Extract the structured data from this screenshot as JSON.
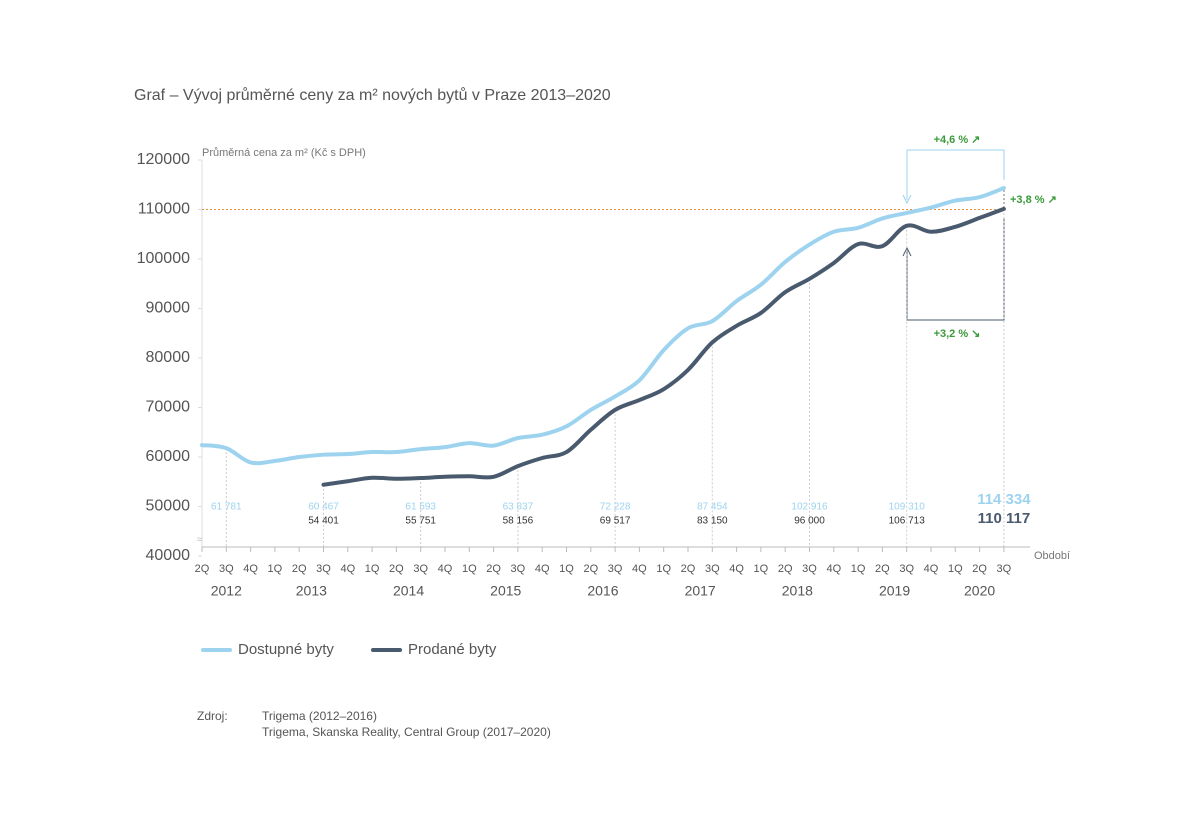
{
  "chart_data": {
    "type": "line",
    "title": "Graf – Vývoj průměrné ceny za m² nových bytů v Praze  2013–2020",
    "y_axis_label": "Průměrná cena za m² (Kč s DPH)",
    "x_axis_label": "Období",
    "category_groups": [
      {
        "label": "2012",
        "categories": [
          "2Q",
          "3Q",
          "4Q"
        ]
      },
      {
        "label": "2013",
        "categories": [
          "1Q",
          "2Q",
          "3Q",
          "4Q"
        ]
      },
      {
        "label": "2014",
        "categories": [
          "1Q",
          "2Q",
          "3Q",
          "4Q"
        ]
      },
      {
        "label": "2015",
        "categories": [
          "1Q",
          "2Q",
          "3Q",
          "4Q"
        ]
      },
      {
        "label": "2016",
        "categories": [
          "1Q",
          "2Q",
          "3Q",
          "4Q"
        ]
      },
      {
        "label": "2017",
        "categories": [
          "1Q",
          "2Q",
          "3Q",
          "4Q"
        ]
      },
      {
        "label": "2018",
        "categories": [
          "1Q",
          "2Q",
          "3Q",
          "4Q"
        ]
      },
      {
        "label": "2019",
        "categories": [
          "1Q",
          "2Q",
          "3Q",
          "4Q"
        ]
      },
      {
        "label": "2020",
        "categories": [
          "1Q",
          "2Q",
          "3Q"
        ]
      }
    ],
    "series": [
      {
        "name": "Dostupné byty",
        "color": "#9dd3ef",
        "values": [
          62400,
          61781,
          58900,
          59200,
          60000,
          60467,
          60600,
          61000,
          61000,
          61593,
          62000,
          62800,
          62300,
          63837,
          64500,
          66200,
          69500,
          72228,
          75500,
          81600,
          86000,
          87454,
          91500,
          94800,
          99400,
          102916,
          105500,
          106300,
          108200,
          109310,
          110400,
          111800,
          112500,
          114334
        ],
        "value_labels": [
          null,
          "61 781",
          null,
          null,
          null,
          "60 467",
          null,
          null,
          null,
          "61 593",
          null,
          null,
          null,
          "63 837",
          null,
          null,
          null,
          "72 228",
          null,
          null,
          null,
          "87 454",
          null,
          null,
          null,
          "102 916",
          null,
          null,
          null,
          "109 310",
          null,
          null,
          null,
          "114 334"
        ]
      },
      {
        "name": "Prodané byty",
        "color": "#4a5a6e",
        "values": [
          null,
          null,
          null,
          null,
          null,
          54401,
          55100,
          55800,
          55600,
          55751,
          56000,
          56100,
          56000,
          58156,
          59800,
          61000,
          65500,
          69517,
          71500,
          73700,
          77600,
          83150,
          86500,
          89100,
          93300,
          96000,
          99200,
          103000,
          102600,
          106713,
          105500,
          106500,
          108300,
          110117
        ],
        "value_labels": [
          null,
          null,
          null,
          null,
          null,
          "54 401",
          null,
          null,
          null,
          "55 751",
          null,
          null,
          null,
          "58 156",
          null,
          null,
          null,
          "69 517",
          null,
          null,
          null,
          "83 150",
          null,
          null,
          null,
          "96 000",
          null,
          null,
          null,
          "106 713",
          null,
          null,
          null,
          "110 117"
        ]
      }
    ],
    "ylim": [
      40000,
      120000
    ],
    "yticks": [
      40000,
      50000,
      60000,
      70000,
      80000,
      90000,
      100000,
      110000,
      120000
    ],
    "reference_line": {
      "value": 110000,
      "color": "#e8903a"
    },
    "annotations": {
      "top": "+4,6 % ↗",
      "right": "+3,8 % ↗",
      "bottom": "+3,2 % ↘"
    },
    "source": {
      "label": "Zdroj:",
      "lines": [
        "Trigema (2012–2016)",
        "Trigema, Skanska Reality, Central Group (2017–2020)"
      ]
    }
  }
}
